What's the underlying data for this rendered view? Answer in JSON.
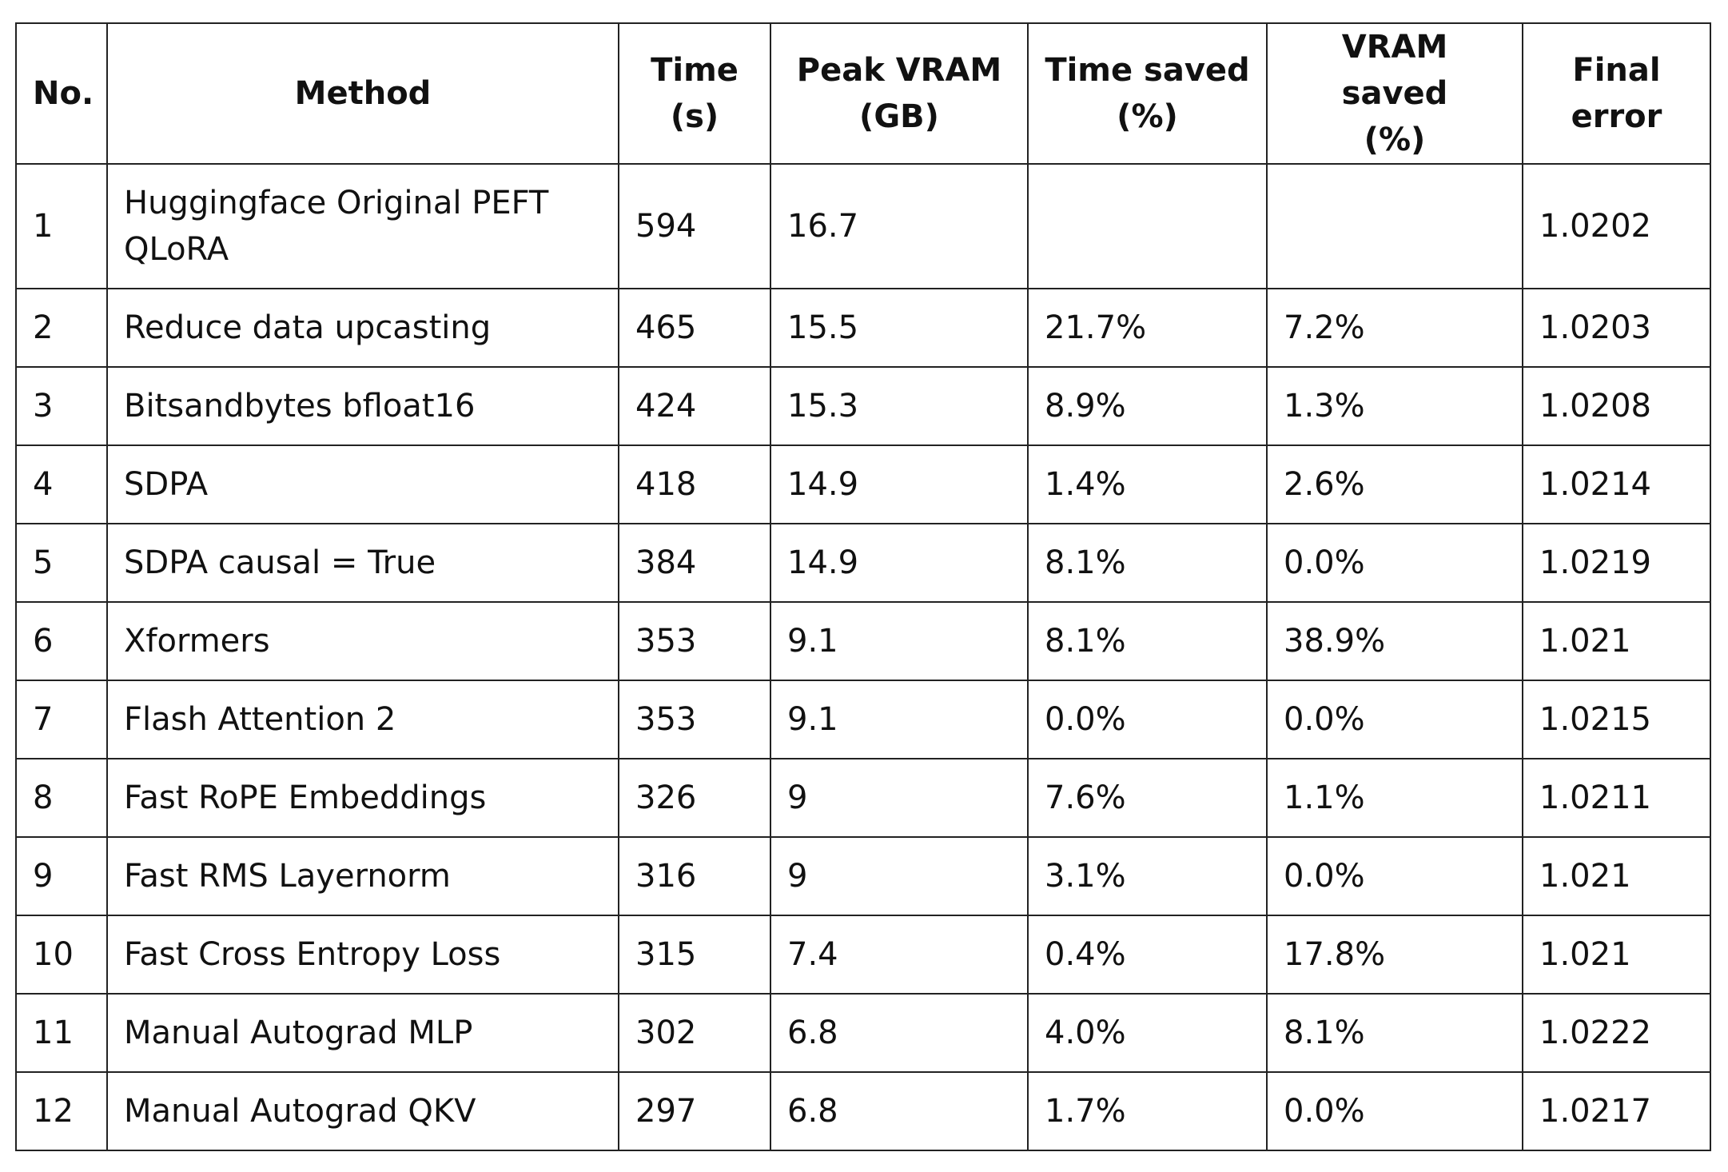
{
  "table": {
    "header": [
      [
        "No."
      ],
      [
        "Method"
      ],
      [
        "Time",
        "(s)"
      ],
      [
        "Peak VRAM",
        "(GB)"
      ],
      [
        "Time saved",
        "(%)"
      ],
      [
        "VRAM saved",
        "(%)"
      ],
      [
        "Final",
        "error"
      ]
    ],
    "rows": [
      [
        "1",
        "Huggingface Original PEFT QLoRA",
        "594",
        "16.7",
        null,
        null,
        "1.0202"
      ],
      [
        "2",
        "Reduce data upcasting",
        "465",
        "15.5",
        "21.7%",
        "7.2%",
        "1.0203"
      ],
      [
        "3",
        "Bitsandbytes bfloat16",
        "424",
        "15.3",
        "8.9%",
        "1.3%",
        "1.0208"
      ],
      [
        "4",
        "SDPA",
        "418",
        "14.9",
        "1.4%",
        "2.6%",
        "1.0214"
      ],
      [
        "5",
        "SDPA causal = True",
        "384",
        "14.9",
        "8.1%",
        "0.0%",
        "1.0219"
      ],
      [
        "6",
        "Xformers",
        "353",
        "9.1",
        "8.1%",
        "38.9%",
        "1.021"
      ],
      [
        "7",
        "Flash Attention 2",
        "353",
        "9.1",
        "0.0%",
        "0.0%",
        "1.0215"
      ],
      [
        "8",
        "Fast RoPE Embeddings",
        "326",
        "9",
        "7.6%",
        "1.1%",
        "1.0211"
      ],
      [
        "9",
        "Fast RMS Layernorm",
        "316",
        "9",
        "3.1%",
        "0.0%",
        "1.021"
      ],
      [
        "10",
        "Fast Cross Entropy Loss",
        "315",
        "7.4",
        "0.4%",
        "17.8%",
        "1.021"
      ],
      [
        "11",
        "Manual Autograd MLP",
        "302",
        "6.8",
        "4.0%",
        "8.1%",
        "1.0222"
      ],
      [
        "12",
        "Manual Autograd QKV",
        "297",
        "6.8",
        "1.7%",
        "0.0%",
        "1.0217"
      ]
    ]
  }
}
